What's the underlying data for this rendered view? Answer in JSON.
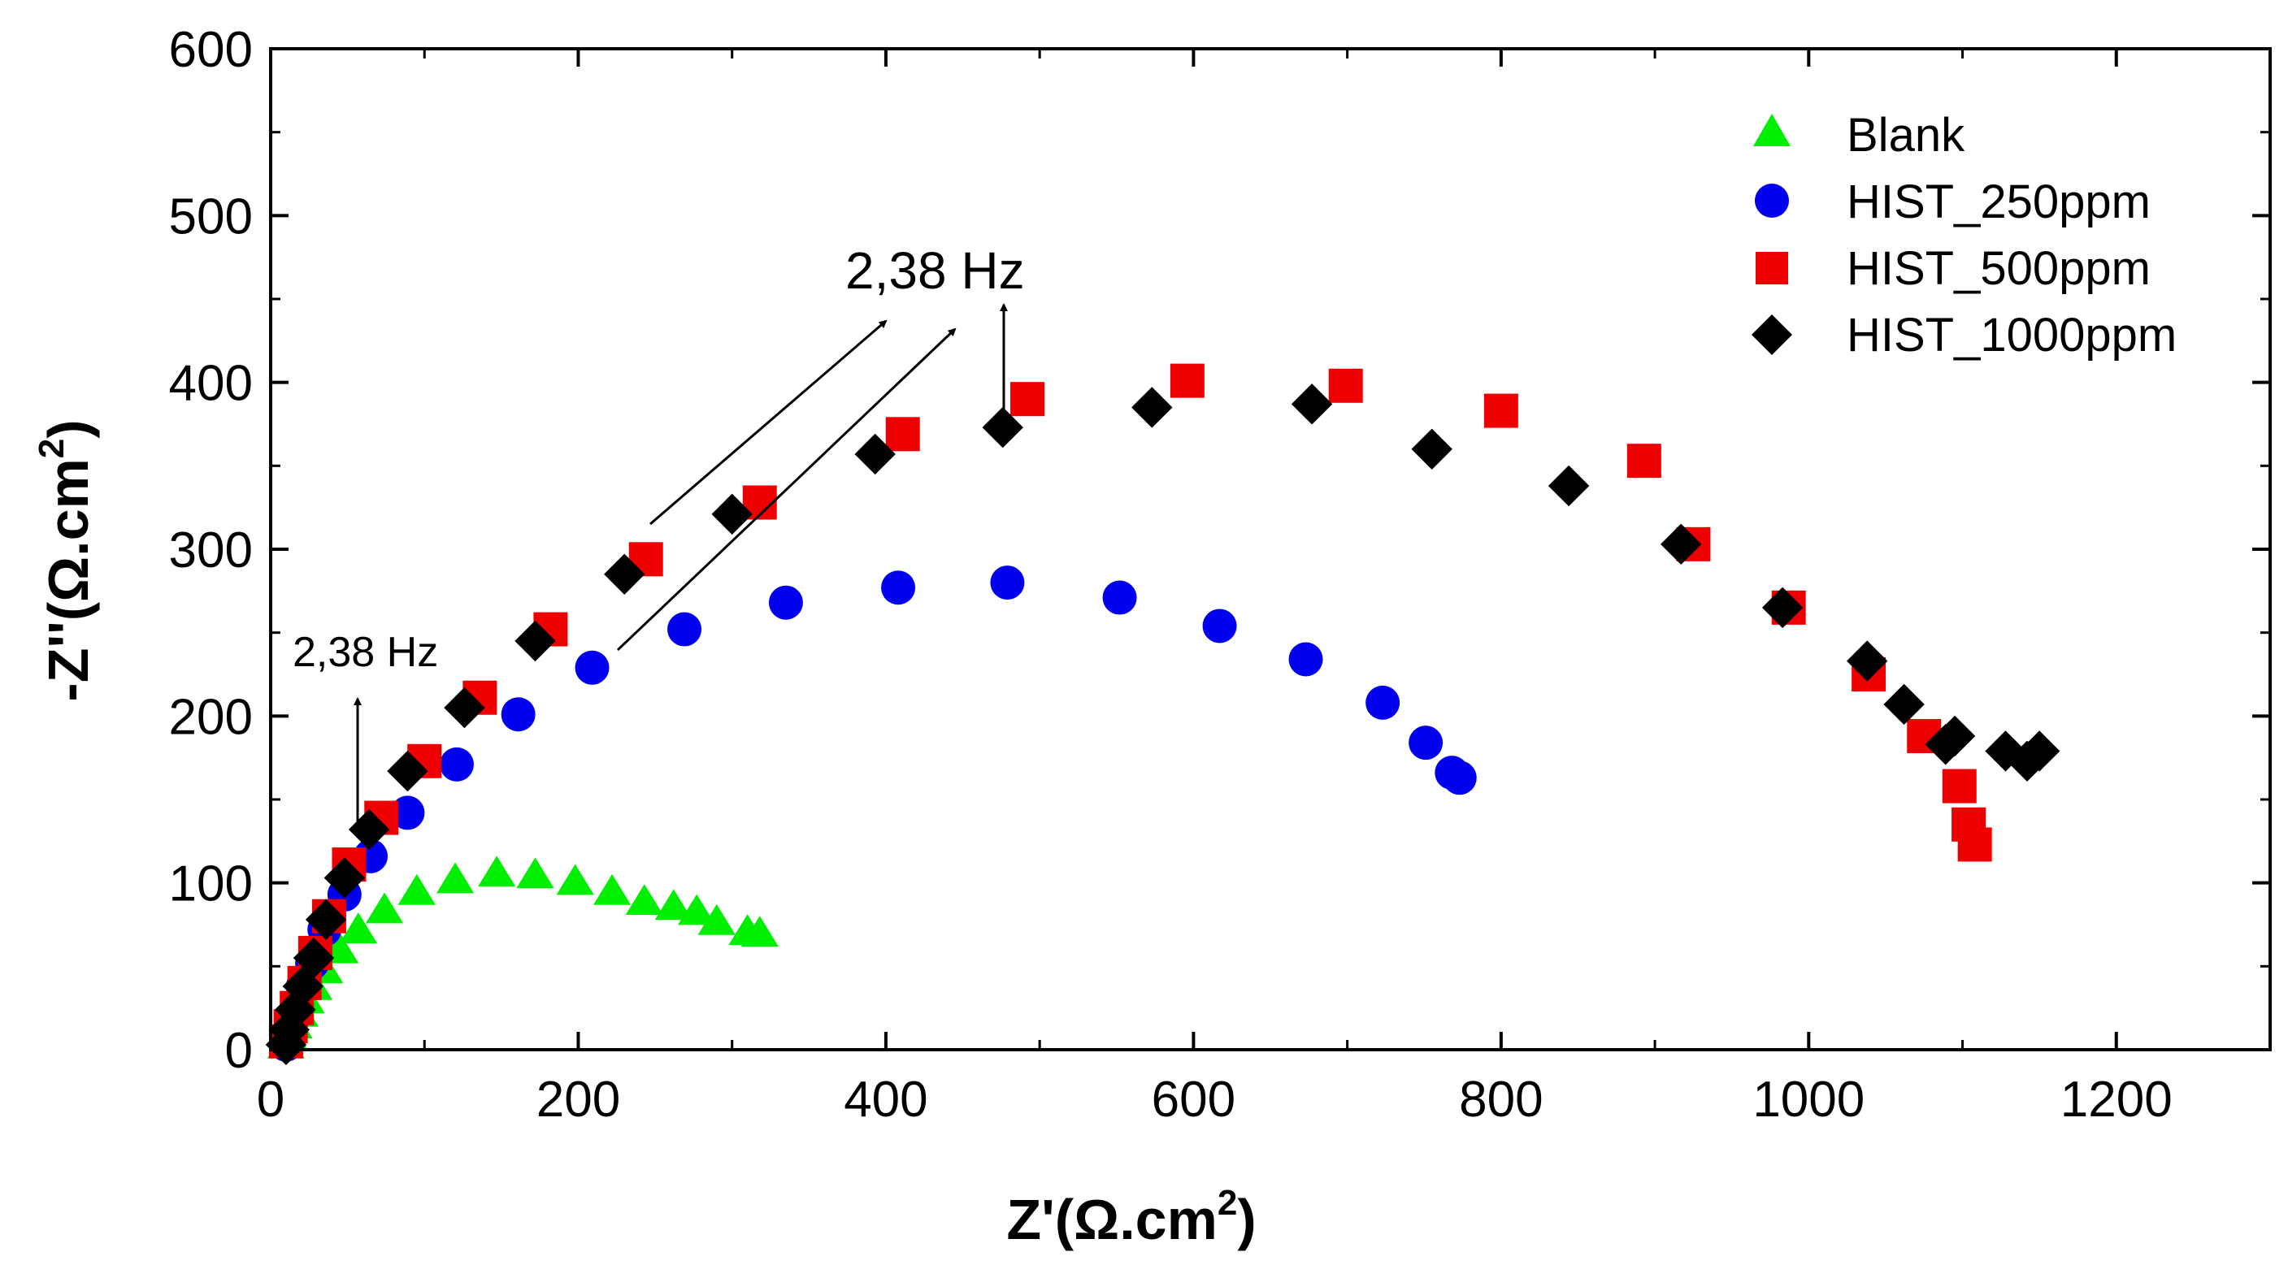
{
  "chart_data": {
    "type": "scatter",
    "title": "",
    "xlabel": "Z'(Ω.cm²)",
    "xlabel_main": "Z'(Ω.cm",
    "xlabel_sup": "2",
    "xlabel_close": ")",
    "ylabel": "-Z''(Ω.cm²)",
    "ylabel_main": "-Z''(Ω.cm",
    "ylabel_sup": "2",
    "ylabel_close": ")",
    "xlim": [
      0,
      1300
    ],
    "ylim": [
      0,
      600
    ],
    "xticks": [
      0,
      200,
      400,
      600,
      800,
      1000,
      1200
    ],
    "yticks": [
      0,
      100,
      200,
      300,
      400,
      500,
      600
    ],
    "xtick_labels": [
      "0",
      "200",
      "400",
      "600",
      "800",
      "1000",
      "1200"
    ],
    "ytick_labels": [
      "0",
      "100",
      "200",
      "300",
      "400",
      "500",
      "600"
    ],
    "legend_position": "top-right",
    "series": [
      {
        "name": "Blank",
        "marker": "triangle",
        "color": "#00ee00",
        "points": [
          [
            10,
            3
          ],
          [
            12,
            8
          ],
          [
            15,
            15
          ],
          [
            19,
            22
          ],
          [
            23,
            30
          ],
          [
            28,
            38
          ],
          [
            35,
            48
          ],
          [
            45,
            60
          ],
          [
            57,
            72
          ],
          [
            74,
            84
          ],
          [
            95,
            95
          ],
          [
            120,
            102
          ],
          [
            147,
            106
          ],
          [
            172,
            105
          ],
          [
            198,
            101
          ],
          [
            222,
            95
          ],
          [
            243,
            89
          ],
          [
            262,
            86
          ],
          [
            277,
            83
          ],
          [
            290,
            77
          ],
          [
            310,
            71
          ],
          [
            318,
            70
          ]
        ]
      },
      {
        "name": "HIST_250ppm",
        "marker": "circle",
        "color": "#0000ee",
        "points": [
          [
            10,
            3
          ],
          [
            12,
            10
          ],
          [
            14,
            18
          ],
          [
            17,
            27
          ],
          [
            21,
            38
          ],
          [
            27,
            52
          ],
          [
            35,
            72
          ],
          [
            48,
            93
          ],
          [
            65,
            116
          ],
          [
            89,
            142
          ],
          [
            121,
            171
          ],
          [
            161,
            201
          ],
          [
            209,
            229
          ],
          [
            269,
            252
          ],
          [
            335,
            268
          ],
          [
            408,
            277
          ],
          [
            479,
            280
          ],
          [
            552,
            271
          ],
          [
            617,
            254
          ],
          [
            673,
            234
          ],
          [
            723,
            208
          ],
          [
            751,
            184
          ],
          [
            768,
            166
          ],
          [
            773,
            163
          ]
        ]
      },
      {
        "name": "HIST_500ppm",
        "marker": "square",
        "color": "#ee0000",
        "points": [
          [
            10,
            5
          ],
          [
            13,
            14
          ],
          [
            17,
            25
          ],
          [
            22,
            40
          ],
          [
            29,
            58
          ],
          [
            38,
            80
          ],
          [
            51,
            111
          ],
          [
            72,
            139
          ],
          [
            100,
            173
          ],
          [
            136,
            211
          ],
          [
            182,
            252
          ],
          [
            244,
            294
          ],
          [
            318,
            328
          ],
          [
            411,
            369
          ],
          [
            492,
            390
          ],
          [
            596,
            401
          ],
          [
            699,
            398
          ],
          [
            800,
            383
          ],
          [
            893,
            353
          ],
          [
            925,
            303
          ],
          [
            987,
            265
          ],
          [
            1039,
            225
          ],
          [
            1075,
            188
          ],
          [
            1098,
            158
          ],
          [
            1104,
            135
          ],
          [
            1108,
            123
          ]
        ]
      },
      {
        "name": "HIST_1000ppm",
        "marker": "diamond",
        "color": "#000000",
        "points": [
          [
            10,
            3
          ],
          [
            12,
            12
          ],
          [
            16,
            24
          ],
          [
            21,
            38
          ],
          [
            28,
            55
          ],
          [
            36,
            78
          ],
          [
            48,
            103
          ],
          [
            64,
            132
          ],
          [
            89,
            167
          ],
          [
            126,
            205
          ],
          [
            172,
            245
          ],
          [
            230,
            285
          ],
          [
            300,
            321
          ],
          [
            393,
            357
          ],
          [
            476,
            373
          ],
          [
            573,
            385
          ],
          [
            677,
            387
          ],
          [
            755,
            360
          ],
          [
            844,
            338
          ],
          [
            917,
            303
          ],
          [
            983,
            265
          ],
          [
            1038,
            233
          ],
          [
            1062,
            207
          ],
          [
            1089,
            183
          ],
          [
            1095,
            188
          ],
          [
            1128,
            179
          ],
          [
            1142,
            173
          ],
          [
            1150,
            179
          ]
        ]
      }
    ],
    "annotations": [
      {
        "label": "2,38 Hz",
        "role": "low-frequency-small"
      },
      {
        "label": "2,38 Hz",
        "role": "low-frequency-large"
      }
    ]
  }
}
